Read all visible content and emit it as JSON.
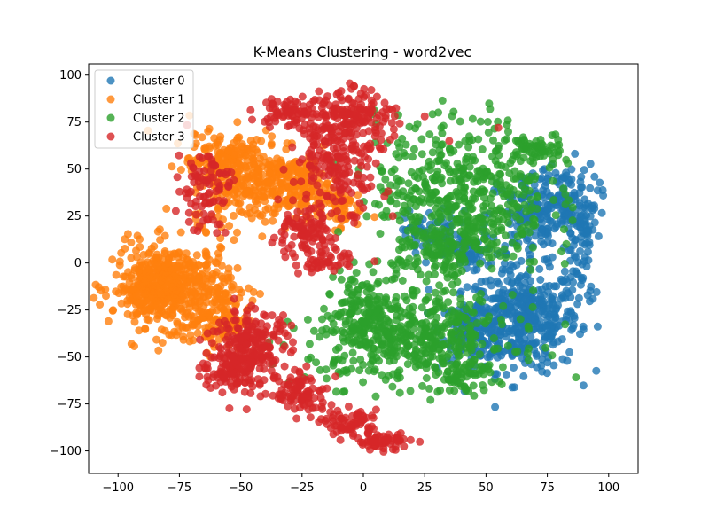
{
  "chart_data": {
    "type": "scatter",
    "title": "K-Means Clustering - word2vec",
    "xlabel": "",
    "ylabel": "",
    "xlim": [
      -112,
      112
    ],
    "ylim": [
      -112,
      106
    ],
    "xticks": [
      -100,
      -75,
      -50,
      -25,
      0,
      25,
      50,
      75,
      100
    ],
    "yticks": [
      -100,
      -75,
      -50,
      -25,
      0,
      25,
      50,
      75,
      100
    ],
    "grid": false,
    "legend": "upper-left",
    "series": [
      {
        "name": "Cluster 0",
        "color": "#1f77b4",
        "regions": [
          {
            "cx": 65,
            "cy": -30,
            "rx": 20,
            "ry": 25,
            "n": 420
          },
          {
            "cx": 45,
            "cy": -35,
            "rx": 12,
            "ry": 15,
            "n": 120
          },
          {
            "cx": 70,
            "cy": 25,
            "rx": 18,
            "ry": 22,
            "n": 160
          },
          {
            "cx": 82,
            "cy": 35,
            "rx": 12,
            "ry": 18,
            "n": 90
          },
          {
            "cx": 28,
            "cy": 15,
            "rx": 10,
            "ry": 12,
            "n": 70
          },
          {
            "cx": 45,
            "cy": 5,
            "rx": 10,
            "ry": 10,
            "n": 50
          },
          {
            "cx": 88,
            "cy": -5,
            "rx": 6,
            "ry": 20,
            "n": 40
          },
          {
            "cx": 90,
            "cy": 20,
            "rx": 5,
            "ry": 10,
            "n": 30
          }
        ]
      },
      {
        "name": "Cluster 1",
        "color": "#ff7f0e",
        "regions": [
          {
            "cx": -78,
            "cy": -12,
            "rx": 22,
            "ry": 20,
            "n": 450
          },
          {
            "cx": -88,
            "cy": -15,
            "rx": 10,
            "ry": 12,
            "n": 120
          },
          {
            "cx": -60,
            "cy": -30,
            "rx": 12,
            "ry": 15,
            "n": 120
          },
          {
            "cx": -45,
            "cy": 45,
            "rx": 23,
            "ry": 22,
            "n": 330
          },
          {
            "cx": -25,
            "cy": 40,
            "rx": 10,
            "ry": 15,
            "n": 110
          },
          {
            "cx": -60,
            "cy": 55,
            "rx": 10,
            "ry": 12,
            "n": 80
          },
          {
            "cx": -10,
            "cy": 30,
            "rx": 8,
            "ry": 10,
            "n": 50
          }
        ]
      },
      {
        "name": "Cluster 2",
        "color": "#2ca02c",
        "regions": [
          {
            "cx": 40,
            "cy": 35,
            "rx": 32,
            "ry": 38,
            "n": 520
          },
          {
            "cx": 20,
            "cy": -40,
            "rx": 38,
            "ry": 22,
            "n": 480
          },
          {
            "cx": 0,
            "cy": -25,
            "rx": 10,
            "ry": 20,
            "n": 110
          },
          {
            "cx": 30,
            "cy": 5,
            "rx": 15,
            "ry": 15,
            "n": 90
          },
          {
            "cx": 70,
            "cy": 60,
            "rx": 10,
            "ry": 8,
            "n": 60
          },
          {
            "cx": 42,
            "cy": -60,
            "rx": 10,
            "ry": 8,
            "n": 60
          }
        ]
      },
      {
        "name": "Cluster 3",
        "color": "#d62728",
        "regions": [
          {
            "cx": -10,
            "cy": 60,
            "rx": 16,
            "ry": 28,
            "n": 260
          },
          {
            "cx": 0,
            "cy": 80,
            "rx": 12,
            "ry": 12,
            "n": 80
          },
          {
            "cx": -30,
            "cy": 80,
            "rx": 12,
            "ry": 8,
            "n": 70
          },
          {
            "cx": -65,
            "cy": 40,
            "rx": 10,
            "ry": 20,
            "n": 90
          },
          {
            "cx": -25,
            "cy": 15,
            "rx": 12,
            "ry": 12,
            "n": 100
          },
          {
            "cx": -45,
            "cy": -45,
            "rx": 14,
            "ry": 18,
            "n": 220
          },
          {
            "cx": -55,
            "cy": -55,
            "rx": 10,
            "ry": 12,
            "n": 90
          },
          {
            "cx": -25,
            "cy": -70,
            "rx": 10,
            "ry": 10,
            "n": 90
          },
          {
            "cx": -5,
            "cy": -85,
            "rx": 10,
            "ry": 6,
            "n": 70
          },
          {
            "cx": 8,
            "cy": -95,
            "rx": 10,
            "ry": 4,
            "n": 60
          },
          {
            "cx": -15,
            "cy": 0,
            "rx": 10,
            "ry": 5,
            "n": 40
          }
        ],
        "outliers": [
          [
            35,
            65
          ],
          [
            55,
            72
          ],
          [
            12,
            25
          ],
          [
            25,
            78
          ]
        ]
      }
    ]
  }
}
